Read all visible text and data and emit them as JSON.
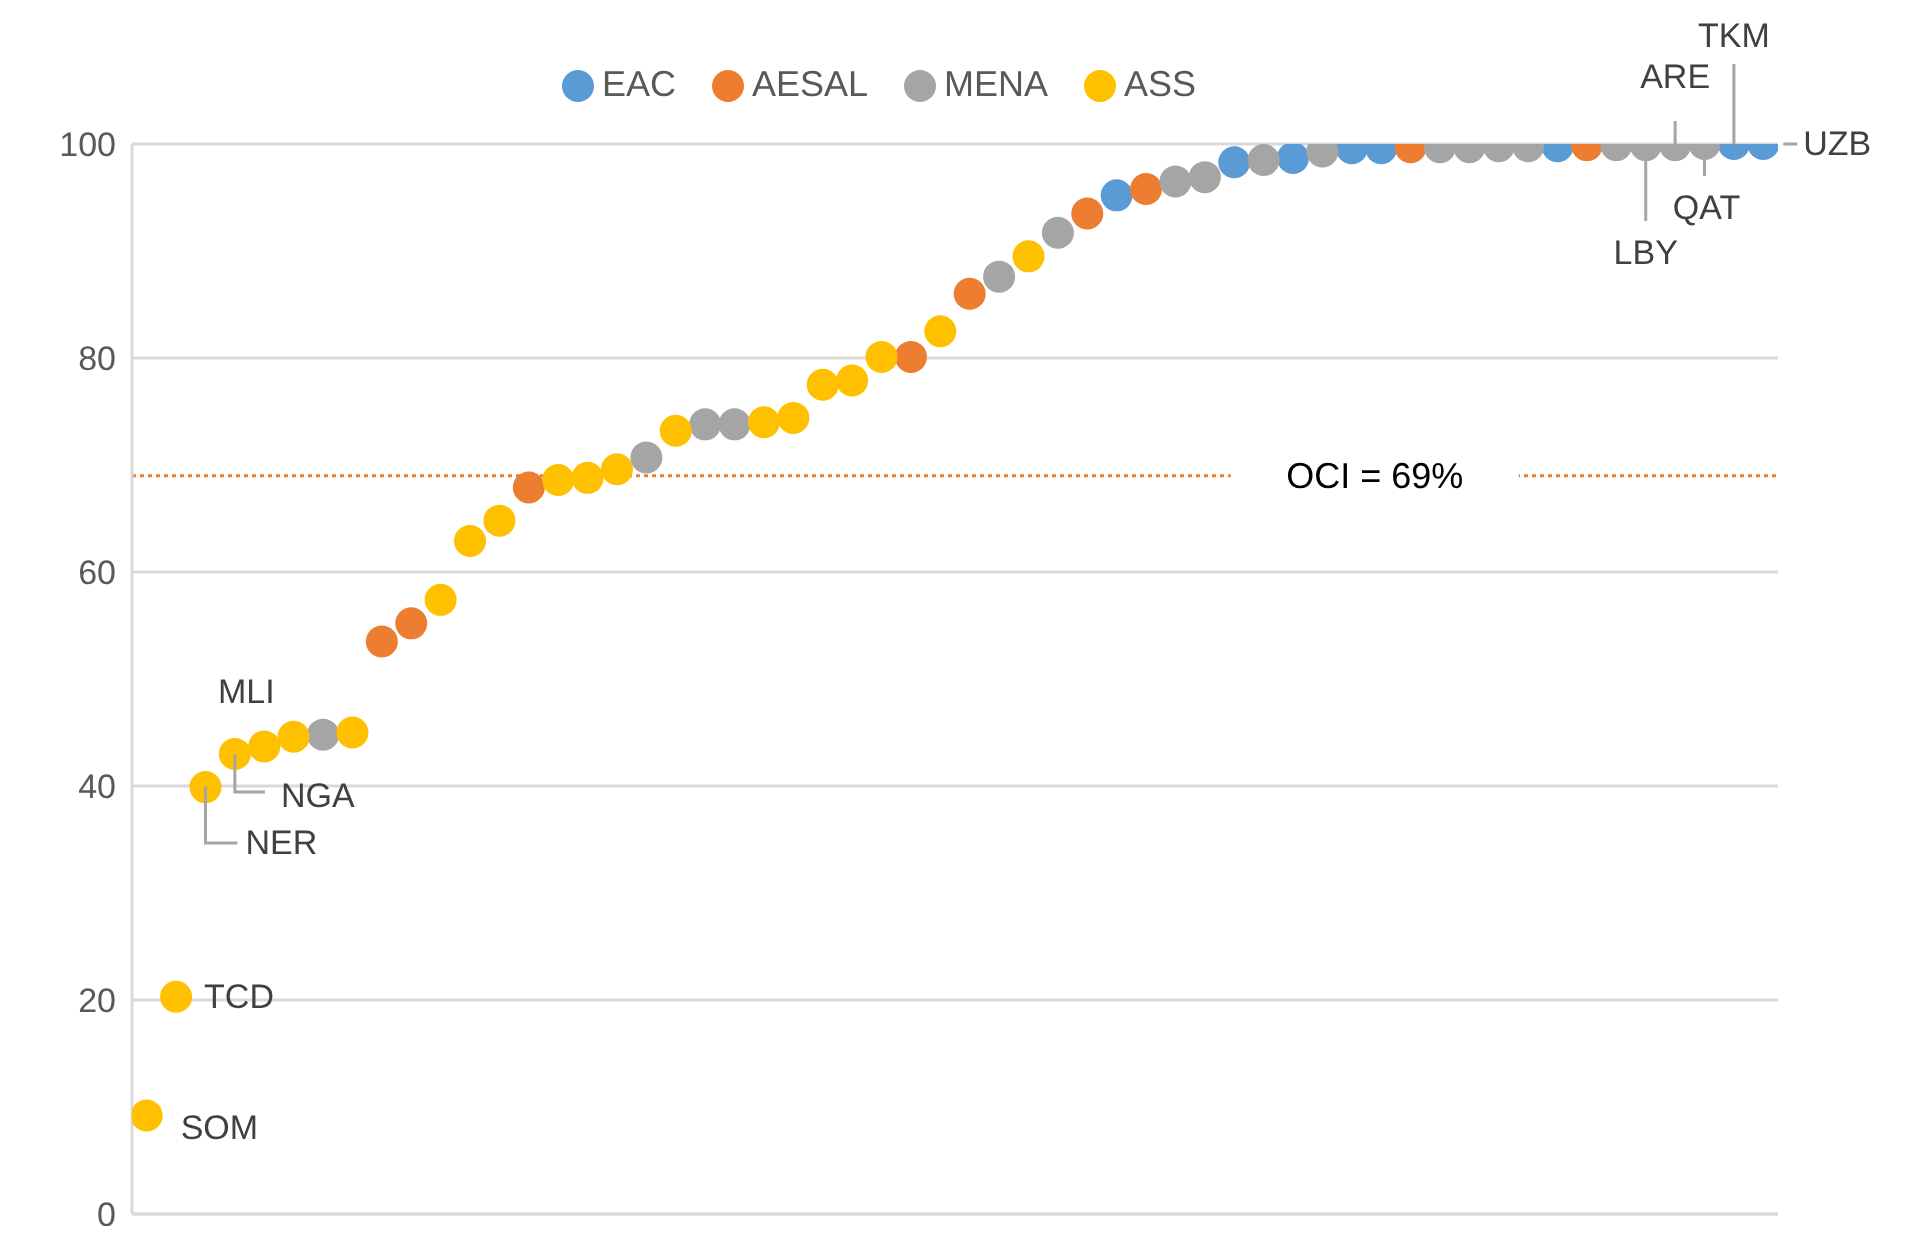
{
  "chart_data": {
    "type": "scatter",
    "categories": [
      null,
      null,
      null,
      null,
      null,
      null,
      null,
      null,
      null,
      null,
      null,
      null,
      null,
      null,
      null,
      null,
      null,
      null,
      null,
      null,
      null,
      null,
      null,
      null,
      null,
      null,
      null,
      null,
      null,
      null,
      null,
      null,
      null,
      null,
      null,
      null,
      null,
      null,
      null,
      null,
      null,
      null,
      null,
      null,
      null,
      null,
      null,
      null,
      null,
      null,
      null,
      null,
      null,
      null,
      null,
      null
    ],
    "series": [
      {
        "name": "EAC",
        "color": "#5b9bd5",
        "values": [
          null,
          null,
          null,
          null,
          null,
          null,
          null,
          null,
          null,
          null,
          null,
          null,
          null,
          null,
          null,
          null,
          null,
          null,
          null,
          null,
          null,
          null,
          null,
          null,
          null,
          null,
          null,
          null,
          null,
          null,
          null,
          null,
          null,
          95.2,
          null,
          null,
          null,
          98.3,
          null,
          98.7,
          null,
          99.6,
          99.6,
          null,
          null,
          null,
          null,
          null,
          99.8,
          null,
          null,
          null,
          null,
          null,
          100,
          100
        ]
      },
      {
        "name": "AESAL",
        "color": "#ed7d31",
        "values": [
          null,
          null,
          null,
          null,
          null,
          null,
          null,
          null,
          53.5,
          55.2,
          null,
          null,
          null,
          67.9,
          null,
          null,
          null,
          null,
          null,
          null,
          null,
          null,
          null,
          null,
          null,
          null,
          80.1,
          null,
          86,
          null,
          null,
          null,
          93.5,
          null,
          95.8,
          null,
          null,
          null,
          null,
          null,
          null,
          null,
          null,
          99.7,
          null,
          null,
          null,
          null,
          null,
          99.9,
          null,
          null,
          null,
          null,
          null,
          null
        ]
      },
      {
        "name": "MENA",
        "color": "#a5a5a5",
        "values": [
          null,
          null,
          null,
          null,
          null,
          null,
          44.8,
          null,
          null,
          null,
          null,
          null,
          null,
          null,
          null,
          null,
          null,
          70.7,
          null,
          73.8,
          73.8,
          null,
          null,
          null,
          null,
          null,
          null,
          null,
          null,
          87.6,
          null,
          91.7,
          null,
          null,
          null,
          96.5,
          96.9,
          null,
          98.5,
          null,
          99.3,
          null,
          null,
          null,
          99.7,
          99.7,
          99.8,
          99.8,
          null,
          null,
          99.9,
          99.9,
          99.9,
          100,
          null,
          null
        ]
      },
      {
        "name": "ASS",
        "color": "#ffc000",
        "values": [
          9.2,
          20.3,
          39.9,
          43,
          43.7,
          44.6,
          null,
          45,
          null,
          null,
          57.4,
          62.9,
          64.8,
          null,
          68.6,
          68.8,
          69.6,
          null,
          73.2,
          null,
          null,
          74,
          74.4,
          77.5,
          77.9,
          80.1,
          null,
          82.5,
          null,
          null,
          89.5,
          null,
          null,
          null,
          null,
          null,
          null,
          null,
          null,
          null,
          null,
          null,
          null,
          null,
          null,
          null,
          null,
          null,
          null,
          null,
          null,
          null,
          null,
          null,
          null,
          null
        ]
      }
    ],
    "ylim": [
      0,
      100
    ],
    "yticks": [
      0,
      20,
      40,
      60,
      80,
      100
    ],
    "grid": "y",
    "legend": "top",
    "marker": "circle",
    "ref_lines": [
      {
        "axis": "y",
        "value": 69,
        "label": "OCI = 69%",
        "color": "#ed7d31",
        "line_style": "dotted"
      }
    ],
    "annotations": [
      "SOM",
      "TCD",
      "NER",
      "NGA",
      "MLI",
      "LBY",
      "ARE",
      "QAT",
      "TKM",
      "UZB"
    ]
  }
}
